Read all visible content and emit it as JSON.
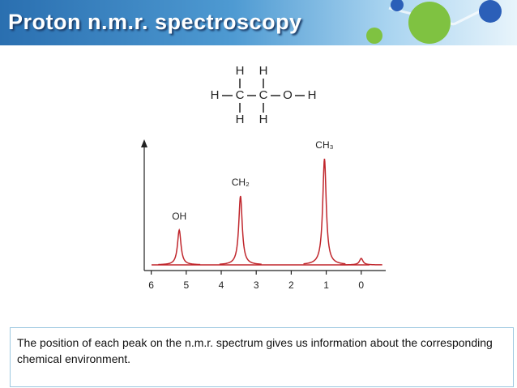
{
  "header": {
    "title": "Proton n.m.r. spectroscopy"
  },
  "molecule": {
    "atoms": [
      "H",
      "H",
      "H",
      "C",
      "C",
      "O",
      "H",
      "H",
      "H"
    ]
  },
  "chart_data": {
    "type": "spectrum",
    "x": [
      5.2,
      3.45,
      1.05,
      0
    ],
    "values": [
      43,
      85,
      131,
      8
    ],
    "peak_labels": [
      "OH",
      "CH₂",
      "CH₃",
      null
    ],
    "color": "#c0262c",
    "xlim": [
      6.2,
      -0.7
    ],
    "xticks": [
      6,
      5,
      4,
      3,
      2,
      1,
      0
    ],
    "ylim": [
      -7,
      150
    ]
  },
  "caption": "The position of each peak on the n.m.r. spectrum gives us information about the corresponding chemical environment."
}
